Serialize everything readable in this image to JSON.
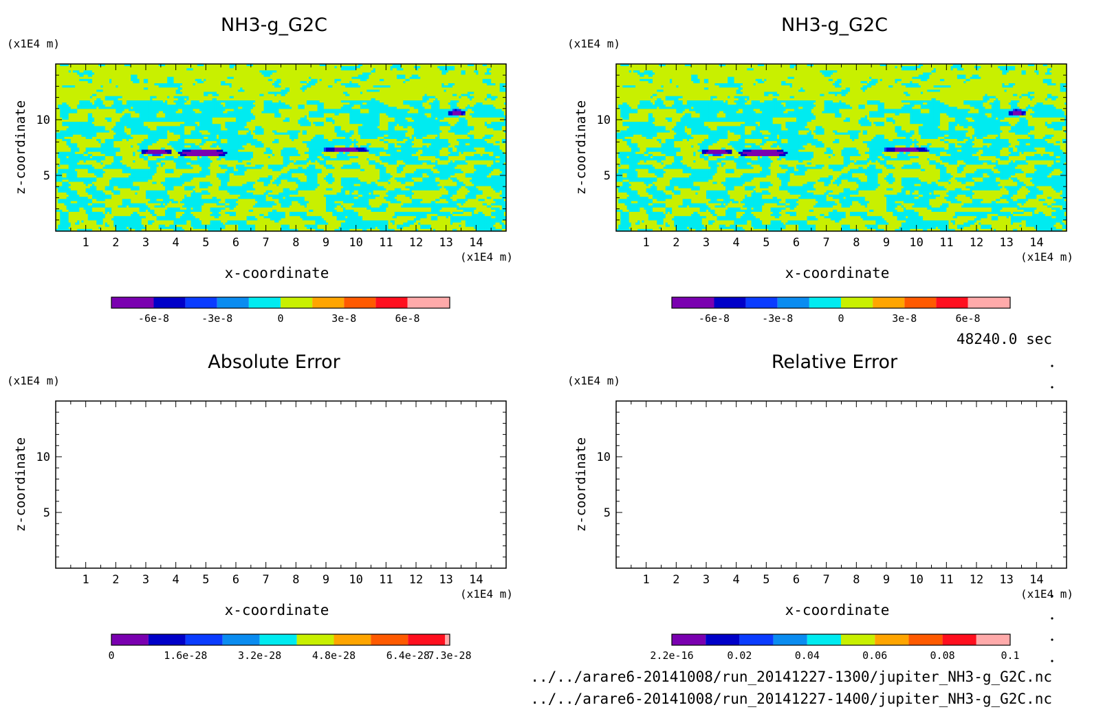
{
  "time_label": "48240.0 sec",
  "file_paths": [
    "../../arare6-20141008/run_20141227-1300/jupiter_NH3-g_G2C.nc",
    "../../arare6-20141008/run_20141227-1400/jupiter_NH3-g_G2C.nc"
  ],
  "palette": [
    "#7a00b0",
    "#0000c8",
    "#0a3cff",
    "#0a8cf0",
    "#00ebf0",
    "#c8f000",
    "#ffa500",
    "#ff5a00",
    "#ff0f1e",
    "#ffaaaa"
  ],
  "chart_data": [
    {
      "type": "heatmap",
      "title": "NH3-g_G2C",
      "xlabel": "x-coordinate",
      "ylabel": "z-coordinate",
      "x_unit": "(x1E4 m)",
      "y_unit": "(x1E4 m)",
      "xlim": [
        0,
        15
      ],
      "ylim": [
        0,
        15
      ],
      "x_ticks": [
        1,
        2,
        3,
        4,
        5,
        6,
        7,
        8,
        9,
        10,
        11,
        12,
        13,
        14
      ],
      "y_ticks": [
        5,
        10
      ],
      "field": "noise",
      "colorbar": {
        "levels": [
          -8e-08,
          -6e-08,
          -4.5e-08,
          -3e-08,
          -1.5e-08,
          0,
          1.5e-08,
          3e-08,
          4.5e-08,
          6e-08,
          8e-08
        ],
        "tick_values": [
          -6e-08,
          -3e-08,
          0,
          3e-08,
          6e-08
        ],
        "tick_labels": [
          "-6e-8",
          "-3e-8",
          "0",
          "3e-8",
          "6e-8"
        ]
      }
    },
    {
      "type": "heatmap",
      "title": "NH3-g_G2C",
      "xlabel": "x-coordinate",
      "ylabel": "z-coordinate",
      "x_unit": "(x1E4 m)",
      "y_unit": "(x1E4 m)",
      "xlim": [
        0,
        15
      ],
      "ylim": [
        0,
        15
      ],
      "x_ticks": [
        1,
        2,
        3,
        4,
        5,
        6,
        7,
        8,
        9,
        10,
        11,
        12,
        13,
        14
      ],
      "y_ticks": [
        5,
        10
      ],
      "field": "noise",
      "colorbar": {
        "levels": [
          -8e-08,
          -6e-08,
          -4.5e-08,
          -3e-08,
          -1.5e-08,
          0,
          1.5e-08,
          3e-08,
          4.5e-08,
          6e-08,
          8e-08
        ],
        "tick_values": [
          -6e-08,
          -3e-08,
          0,
          3e-08,
          6e-08
        ],
        "tick_labels": [
          "-6e-8",
          "-3e-8",
          "0",
          "3e-8",
          "6e-8"
        ]
      }
    },
    {
      "type": "heatmap",
      "title": "Absolute Error",
      "xlabel": "x-coordinate",
      "ylabel": "z-coordinate",
      "x_unit": "(x1E4 m)",
      "y_unit": "(x1E4 m)",
      "xlim": [
        0,
        15
      ],
      "ylim": [
        0,
        15
      ],
      "x_ticks": [
        1,
        2,
        3,
        4,
        5,
        6,
        7,
        8,
        9,
        10,
        11,
        12,
        13,
        14
      ],
      "y_ticks": [
        5,
        10
      ],
      "field": "empty",
      "colorbar": {
        "levels": [
          0,
          8e-29,
          1.6e-28,
          2.4e-28,
          3.2e-28,
          4e-28,
          4.8e-28,
          5.6e-28,
          6.4e-28,
          7.2e-28,
          7.3e-28
        ],
        "tick_values": [
          0,
          1.6e-28,
          3.2e-28,
          4.8e-28,
          6.4e-28,
          7.3e-28
        ],
        "tick_labels": [
          "0",
          "1.6e-28",
          "3.2e-28",
          "4.8e-28",
          "6.4e-28",
          "7.3e-28"
        ]
      }
    },
    {
      "type": "heatmap",
      "title": "Relative Error",
      "xlabel": "x-coordinate",
      "ylabel": "z-coordinate",
      "x_unit": "(x1E4 m)",
      "y_unit": "(x1E4 m)",
      "xlim": [
        0,
        15
      ],
      "ylim": [
        0,
        15
      ],
      "x_ticks": [
        1,
        2,
        3,
        4,
        5,
        6,
        7,
        8,
        9,
        10,
        11,
        12,
        13,
        14
      ],
      "y_ticks": [
        5,
        10
      ],
      "field": "empty",
      "colorbar": {
        "levels": [
          0,
          0.01,
          0.02,
          0.03,
          0.04,
          0.05,
          0.06,
          0.07,
          0.08,
          0.09,
          0.1
        ],
        "tick_values": [
          0,
          0.02,
          0.04,
          0.06,
          0.08,
          0.1
        ],
        "tick_labels": [
          "2.2e-16",
          "0.02",
          "0.04",
          "0.06",
          "0.08",
          "0.1"
        ]
      }
    }
  ]
}
